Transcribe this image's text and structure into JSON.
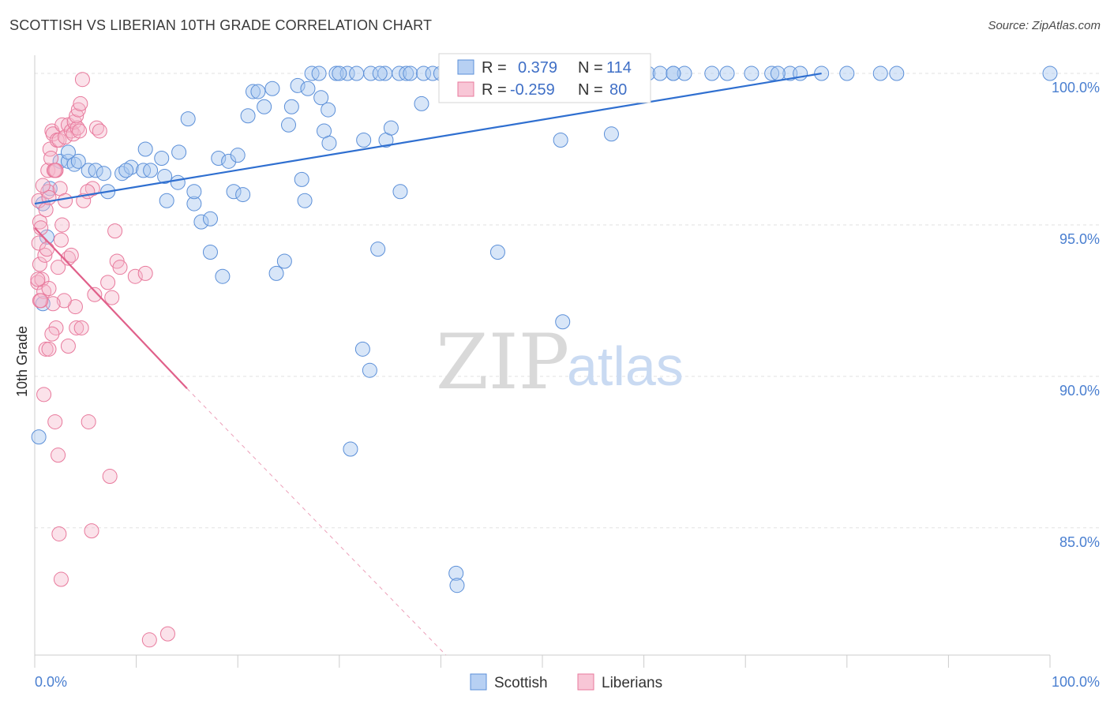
{
  "title": "SCOTTISH VS LIBERIAN 10TH GRADE CORRELATION CHART",
  "source": "Source: ZipAtlas.com",
  "watermark": {
    "part1": "ZIP",
    "part2": "atlas"
  },
  "colors": {
    "scottish_fill": "#a9c7f0",
    "scottish_stroke": "#5b8fd8",
    "scottish_line": "#2f6fd0",
    "liberian_fill": "#f5b6ca",
    "liberian_stroke": "#e8799c",
    "liberian_line": "#e0608a",
    "grid": "#e2e2e2",
    "tick_label": "#4a7fd0"
  },
  "legend": {
    "rows": [
      {
        "r_label": "R =",
        "r_value": "0.379",
        "n_label": "N =",
        "n_value": "114"
      },
      {
        "r_label": "R =",
        "r_value": "-0.259",
        "n_label": "N =",
        "n_value": "80"
      }
    ]
  },
  "bottom_legend": [
    "Scottish",
    "Liberians"
  ],
  "chart_data": {
    "type": "scatter",
    "title": "SCOTTISH VS LIBERIAN 10TH GRADE CORRELATION CHART",
    "xlabel": "",
    "ylabel": "10th Grade",
    "xlim": [
      0,
      100
    ],
    "ylim": [
      80.8,
      100.6
    ],
    "x_tick_labels": [
      "0.0%",
      "100.0%"
    ],
    "y_ticks": [
      100,
      95,
      90,
      85
    ],
    "y_tick_labels": [
      "100.0%",
      "95.0%",
      "90.0%",
      "85.0%"
    ],
    "grid": true,
    "legend_position": "top-center",
    "series": [
      {
        "name": "Scottish",
        "r": 0.379,
        "n": 114,
        "trend": {
          "x": [
            0,
            77.5
          ],
          "y": [
            95.7,
            100.0
          ]
        },
        "points": [
          [
            0.8,
            95.7
          ],
          [
            0.8,
            92.4
          ],
          [
            1.2,
            94.6
          ],
          [
            0.4,
            88.0
          ],
          [
            1.5,
            96.2
          ],
          [
            2.5,
            97.1
          ],
          [
            3.3,
            97.1
          ],
          [
            3.3,
            97.4
          ],
          [
            3.9,
            97.0
          ],
          [
            4.3,
            97.1
          ],
          [
            5.3,
            96.8
          ],
          [
            6.0,
            96.8
          ],
          [
            6.8,
            96.7
          ],
          [
            7.2,
            96.1
          ],
          [
            8.6,
            96.7
          ],
          [
            9.5,
            96.9
          ],
          [
            9.0,
            96.8
          ],
          [
            10.7,
            96.8
          ],
          [
            11.4,
            96.8
          ],
          [
            10.9,
            97.5
          ],
          [
            12.5,
            97.2
          ],
          [
            12.8,
            96.6
          ],
          [
            14.2,
            97.4
          ],
          [
            14.1,
            96.4
          ],
          [
            13.0,
            95.8
          ],
          [
            15.1,
            98.5
          ],
          [
            15.7,
            95.7
          ],
          [
            15.7,
            96.1
          ],
          [
            16.4,
            95.1
          ],
          [
            17.3,
            95.2
          ],
          [
            17.3,
            94.1
          ],
          [
            18.1,
            97.2
          ],
          [
            19.1,
            97.1
          ],
          [
            18.5,
            93.3
          ],
          [
            20.0,
            97.3
          ],
          [
            19.6,
            96.1
          ],
          [
            20.5,
            96.0
          ],
          [
            21.0,
            98.6
          ],
          [
            21.5,
            99.4
          ],
          [
            22.0,
            99.4
          ],
          [
            22.6,
            98.9
          ],
          [
            23.4,
            99.5
          ],
          [
            23.8,
            93.4
          ],
          [
            24.6,
            93.8
          ],
          [
            25.0,
            98.3
          ],
          [
            25.3,
            98.9
          ],
          [
            25.9,
            99.6
          ],
          [
            26.3,
            96.5
          ],
          [
            26.6,
            95.8
          ],
          [
            26.9,
            99.5
          ],
          [
            27.3,
            100.0
          ],
          [
            28.0,
            100.0
          ],
          [
            28.5,
            98.1
          ],
          [
            29.0,
            97.7
          ],
          [
            28.2,
            99.2
          ],
          [
            28.9,
            98.8
          ],
          [
            29.7,
            100.0
          ],
          [
            30.8,
            100.0
          ],
          [
            31.7,
            100.0
          ],
          [
            31.1,
            87.6
          ],
          [
            32.4,
            97.8
          ],
          [
            33.1,
            100.0
          ],
          [
            33.8,
            94.2
          ],
          [
            32.3,
            90.9
          ],
          [
            33.0,
            90.2
          ],
          [
            34.5,
            100.0
          ],
          [
            34.6,
            97.8
          ],
          [
            35.1,
            98.2
          ],
          [
            35.9,
            100.0
          ],
          [
            36.6,
            100.0
          ],
          [
            37.0,
            100.0
          ],
          [
            36.0,
            96.1
          ],
          [
            38.3,
            100.0
          ],
          [
            38.1,
            99.0
          ],
          [
            39.2,
            100.0
          ],
          [
            40.0,
            100.0
          ],
          [
            41.3,
            100.0
          ],
          [
            43.0,
            100.0
          ],
          [
            45.2,
            100.0
          ],
          [
            41.5,
            83.5
          ],
          [
            41.6,
            83.1
          ],
          [
            45.6,
            94.1
          ],
          [
            47.4,
            100.0
          ],
          [
            48.6,
            100.0
          ],
          [
            49.5,
            100.0
          ],
          [
            49.0,
            100.0
          ],
          [
            51.0,
            100.0
          ],
          [
            51.8,
            97.8
          ],
          [
            52.0,
            91.8
          ],
          [
            53.6,
            100.0
          ],
          [
            56.8,
            98.0
          ],
          [
            57.1,
            100.0
          ],
          [
            58.4,
            100.0
          ],
          [
            60.4,
            100.0
          ],
          [
            61.6,
            100.0
          ],
          [
            62.9,
            100.0
          ],
          [
            64.0,
            100.0
          ],
          [
            66.7,
            100.0
          ],
          [
            68.2,
            100.0
          ],
          [
            70.6,
            100.0
          ],
          [
            72.6,
            100.0
          ],
          [
            74.4,
            100.0
          ],
          [
            75.4,
            100.0
          ],
          [
            77.5,
            100.0
          ],
          [
            80.0,
            100.0
          ],
          [
            83.3,
            100.0
          ],
          [
            84.9,
            100.0
          ],
          [
            100.0,
            100.0
          ],
          [
            62.9,
            100.0
          ],
          [
            73.2,
            100.0
          ],
          [
            30.0,
            100.0
          ],
          [
            46.0,
            100.0
          ],
          [
            55.0,
            100.0
          ],
          [
            34.0,
            100.0
          ]
        ]
      },
      {
        "name": "Liberians",
        "r": -0.259,
        "n": 80,
        "trend": {
          "x": [
            0,
            15.0
          ],
          "y": [
            94.9,
            89.6
          ]
        },
        "trend_dashed": {
          "x": [
            15.0,
            40.5
          ],
          "y": [
            89.6,
            80.8
          ]
        },
        "points": [
          [
            0.4,
            95.8
          ],
          [
            0.5,
            95.1
          ],
          [
            0.6,
            94.9
          ],
          [
            0.4,
            94.4
          ],
          [
            0.5,
            93.7
          ],
          [
            0.3,
            93.1
          ],
          [
            0.7,
            93.2
          ],
          [
            0.9,
            92.8
          ],
          [
            0.5,
            92.5
          ],
          [
            1.0,
            94.0
          ],
          [
            1.1,
            95.5
          ],
          [
            1.3,
            96.1
          ],
          [
            1.3,
            96.8
          ],
          [
            1.4,
            95.9
          ],
          [
            1.5,
            97.5
          ],
          [
            1.6,
            97.2
          ],
          [
            1.7,
            98.1
          ],
          [
            1.8,
            98.0
          ],
          [
            1.9,
            96.8
          ],
          [
            2.1,
            96.8
          ],
          [
            2.2,
            97.8
          ],
          [
            2.4,
            97.8
          ],
          [
            2.5,
            96.2
          ],
          [
            2.7,
            98.3
          ],
          [
            3.0,
            97.9
          ],
          [
            3.3,
            98.3
          ],
          [
            3.6,
            98.1
          ],
          [
            3.8,
            98.0
          ],
          [
            3.9,
            98.4
          ],
          [
            4.2,
            98.2
          ],
          [
            4.1,
            98.6
          ],
          [
            4.4,
            98.1
          ],
          [
            4.3,
            98.8
          ],
          [
            4.5,
            99.0
          ],
          [
            4.7,
            99.8
          ],
          [
            3.0,
            95.8
          ],
          [
            2.7,
            95.0
          ],
          [
            2.6,
            94.5
          ],
          [
            3.3,
            93.9
          ],
          [
            3.6,
            94.0
          ],
          [
            4.0,
            92.3
          ],
          [
            4.1,
            91.6
          ],
          [
            4.6,
            91.6
          ],
          [
            2.1,
            91.6
          ],
          [
            1.7,
            91.4
          ],
          [
            1.1,
            90.9
          ],
          [
            1.4,
            90.9
          ],
          [
            3.3,
            91.0
          ],
          [
            0.9,
            89.4
          ],
          [
            2.0,
            88.5
          ],
          [
            5.3,
            88.5
          ],
          [
            2.3,
            87.4
          ],
          [
            7.4,
            86.7
          ],
          [
            2.4,
            84.8
          ],
          [
            5.6,
            84.9
          ],
          [
            2.6,
            83.3
          ],
          [
            11.3,
            81.3
          ],
          [
            13.1,
            81.5
          ],
          [
            5.9,
            92.7
          ],
          [
            7.6,
            92.6
          ],
          [
            7.2,
            93.1
          ],
          [
            8.1,
            93.8
          ],
          [
            8.4,
            93.6
          ],
          [
            9.9,
            93.3
          ],
          [
            10.9,
            93.4
          ],
          [
            7.9,
            94.8
          ],
          [
            4.8,
            95.8
          ],
          [
            5.7,
            96.2
          ],
          [
            6.1,
            98.2
          ],
          [
            5.2,
            96.1
          ],
          [
            2.9,
            92.5
          ],
          [
            1.4,
            92.9
          ],
          [
            1.8,
            92.4
          ],
          [
            0.8,
            96.3
          ],
          [
            1.2,
            94.2
          ],
          [
            0.6,
            92.5
          ],
          [
            2.3,
            93.6
          ],
          [
            0.3,
            93.2
          ],
          [
            2.0,
            96.8
          ],
          [
            6.4,
            98.1
          ]
        ]
      }
    ]
  }
}
